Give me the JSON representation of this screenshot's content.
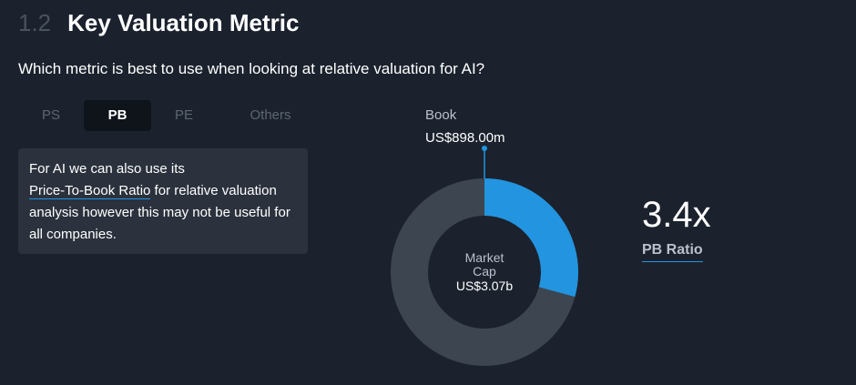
{
  "section": {
    "number": "1.2",
    "title": "Key Valuation Metric"
  },
  "question": "Which metric is best to use when looking at relative valuation for AI?",
  "tabs": [
    {
      "label": "PS",
      "active": false
    },
    {
      "label": "PB",
      "active": true
    },
    {
      "label": "PE",
      "active": false
    },
    {
      "label": "Others",
      "active": false
    }
  ],
  "info": {
    "prefix": "For AI we can also use its",
    "link": "Price-To-Book Ratio",
    "suffix": " for relative valuation analysis however this may not be useful for all companies."
  },
  "chart_data": {
    "type": "pie",
    "variant": "donut",
    "segments": [
      {
        "name": "Book",
        "value": 898.0,
        "label": "US$898.00m",
        "color": "#2394df"
      },
      {
        "name": "Market Cap",
        "value": 3070.0,
        "label": "US$3.07b",
        "color": "#3d4550"
      }
    ],
    "total": 3070.0,
    "center_label": {
      "line1": "Market",
      "line2": "Cap",
      "value": "US$3.07b"
    },
    "callout": {
      "name": "Book",
      "value": "US$898.00m"
    }
  },
  "ratio": {
    "value": "3.4x",
    "label": "PB Ratio"
  },
  "colors": {
    "background": "#1b222d",
    "accent": "#2394df",
    "ring": "#3d4550"
  }
}
